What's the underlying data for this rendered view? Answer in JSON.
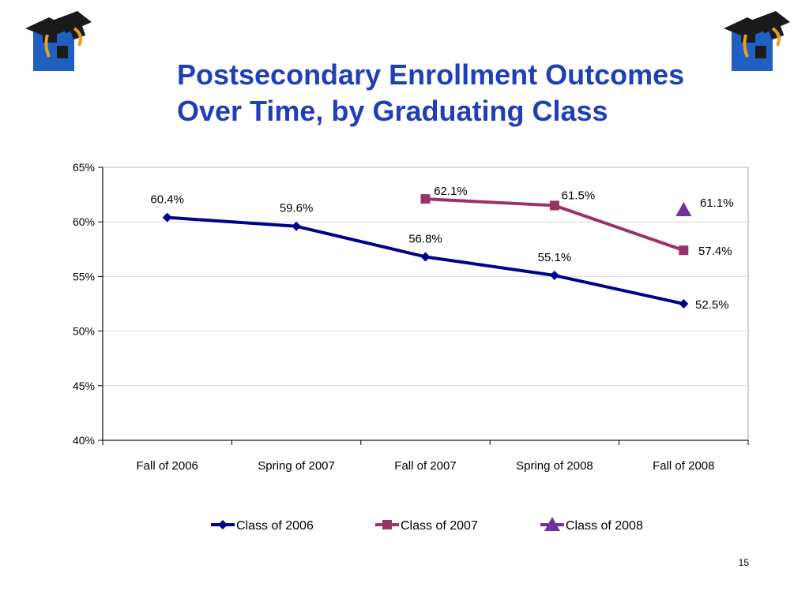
{
  "slide": {
    "title_line1": "Postsecondary Enrollment Outcomes",
    "title_line2": "Over Time, by Graduating Class",
    "page_number": "15",
    "logo_icon": "graduation-cap-icon"
  },
  "colors": {
    "title": "#1f3fb8",
    "class_2006": "#00008b",
    "class_2007": "#993366",
    "class_2008": "#7030a0",
    "grid": "#d9d9d9",
    "plot_border": "#c0c0c0"
  },
  "chart_data": {
    "type": "line",
    "title": "",
    "xlabel": "",
    "ylabel": "",
    "categories": [
      "Fall of 2006",
      "Spring of 2007",
      "Fall of 2007",
      "Spring of 2008",
      "Fall of 2008"
    ],
    "ylim": [
      40,
      65
    ],
    "yticks": [
      40,
      45,
      50,
      55,
      60,
      65
    ],
    "ytick_labels": [
      "40%",
      "45%",
      "50%",
      "55%",
      "60%",
      "65%"
    ],
    "grid": true,
    "legend": "bottom",
    "series": [
      {
        "name": "Class of 2006",
        "marker": "diamond",
        "values": [
          60.4,
          59.6,
          56.8,
          55.1,
          52.5
        ],
        "labels": [
          "60.4%",
          "59.6%",
          "56.8%",
          "55.1%",
          "52.5%"
        ]
      },
      {
        "name": "Class of 2007",
        "marker": "square",
        "values": [
          null,
          null,
          62.1,
          61.5,
          57.4
        ],
        "labels": [
          "",
          "",
          "62.1%",
          "61.5%",
          "57.4%"
        ]
      },
      {
        "name": "Class of 2008",
        "marker": "triangle",
        "values": [
          null,
          null,
          null,
          null,
          61.1
        ],
        "labels": [
          "",
          "",
          "",
          "",
          "61.1%"
        ]
      }
    ]
  }
}
